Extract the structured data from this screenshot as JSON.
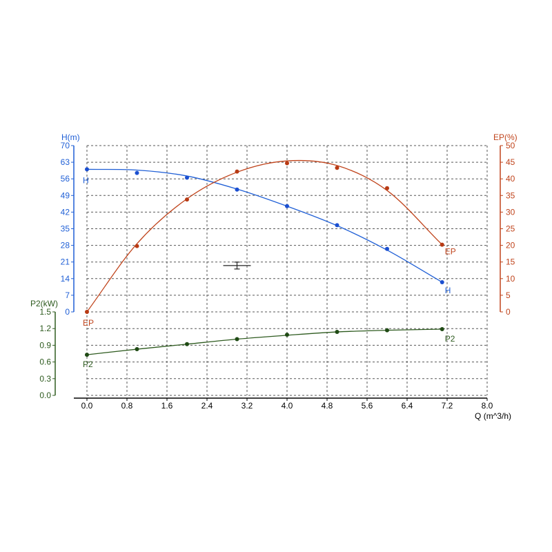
{
  "chart_data": {
    "type": "line",
    "xlabel": "Q (m^3/h)",
    "xlim": [
      0,
      8
    ],
    "x_ticks": [
      "0.0",
      "0.8",
      "1.6",
      "2.4",
      "3.2",
      "4.0",
      "4.8",
      "5.6",
      "6.4",
      "7.2",
      "8.0"
    ],
    "axes": {
      "H": {
        "label": "H(m)",
        "lim": [
          0,
          70
        ],
        "ticks": [
          "0",
          "7",
          "14",
          "21",
          "28",
          "35",
          "42",
          "49",
          "56",
          "63",
          "70"
        ],
        "color": "#1f5fd6"
      },
      "EP": {
        "label": "EP(%)",
        "lim": [
          0,
          50
        ],
        "ticks": [
          "0",
          "5",
          "10",
          "15",
          "20",
          "25",
          "30",
          "35",
          "40",
          "45",
          "50"
        ],
        "color": "#c0441c"
      },
      "P2": {
        "label": "P2(kW)",
        "lim": [
          0,
          1.5
        ],
        "ticks": [
          "0.0",
          "0.3",
          "0.6",
          "0.9",
          "1.2",
          "1.5"
        ],
        "color": "#2d5a1e"
      }
    },
    "series": [
      {
        "name": "H",
        "axis": "H",
        "points": [
          [
            0.0,
            60
          ],
          [
            1.0,
            58.5
          ],
          [
            2.0,
            56.5
          ],
          [
            3.0,
            51.5
          ],
          [
            4.0,
            44.5
          ],
          [
            5.0,
            36.5
          ],
          [
            6.0,
            26.5
          ],
          [
            7.1,
            12.5
          ]
        ],
        "curve": [
          [
            0.0,
            60
          ],
          [
            1.0,
            59.7
          ],
          [
            2.0,
            57.2
          ],
          [
            3.0,
            51.7
          ],
          [
            4.0,
            44.5
          ],
          [
            5.0,
            36.3
          ],
          [
            6.0,
            26.0
          ],
          [
            7.1,
            12.5
          ]
        ]
      },
      {
        "name": "EP",
        "axis": "EP",
        "points": [
          [
            0.0,
            0
          ],
          [
            1.0,
            19.8
          ],
          [
            2.0,
            33.8
          ],
          [
            3.0,
            42.2
          ],
          [
            4.0,
            44.7
          ],
          [
            5.0,
            43.3
          ],
          [
            6.0,
            37.2
          ],
          [
            7.1,
            20.2
          ]
        ],
        "curve": [
          [
            0.0,
            0
          ],
          [
            1.0,
            20.5
          ],
          [
            2.0,
            34.0
          ],
          [
            3.0,
            42.0
          ],
          [
            4.0,
            45.4
          ],
          [
            5.0,
            44.0
          ],
          [
            6.0,
            36.5
          ],
          [
            7.1,
            20.2
          ]
        ]
      },
      {
        "name": "P2",
        "axis": "P2",
        "points": [
          [
            0.0,
            0.73
          ],
          [
            1.0,
            0.83
          ],
          [
            2.0,
            0.92
          ],
          [
            3.0,
            1.01
          ],
          [
            4.0,
            1.09
          ],
          [
            5.0,
            1.14
          ],
          [
            6.0,
            1.17
          ],
          [
            7.1,
            1.19
          ]
        ],
        "curve": [
          [
            0.0,
            0.73
          ],
          [
            1.0,
            0.83
          ],
          [
            2.0,
            0.92
          ],
          [
            3.0,
            1.01
          ],
          [
            4.0,
            1.08
          ],
          [
            5.0,
            1.14
          ],
          [
            6.0,
            1.17
          ],
          [
            7.1,
            1.19
          ]
        ]
      }
    ],
    "series_labels": [
      "H",
      "H",
      "EP",
      "EP",
      "P2",
      "P2"
    ],
    "duty_point": {
      "q": 3.0,
      "h": 19.5
    },
    "grid": true
  }
}
